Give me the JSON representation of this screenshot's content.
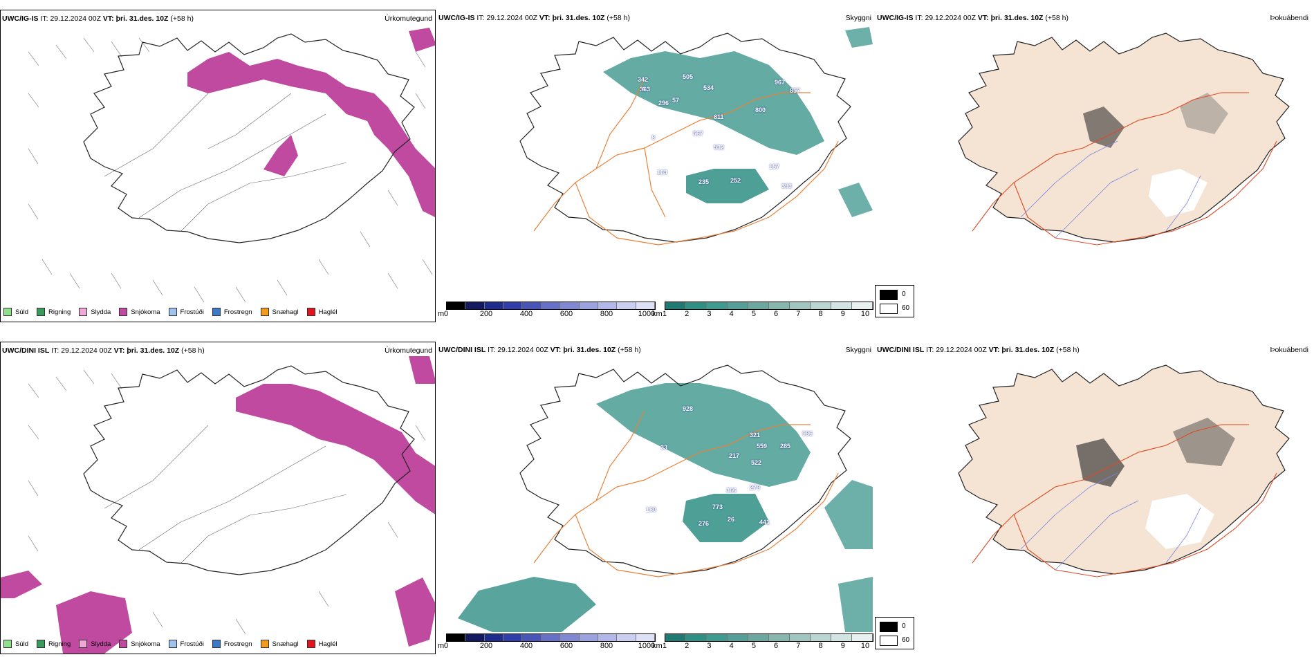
{
  "colors": {
    "coast": "#222222",
    "roads": "#e8823a",
    "rivers": "#7b86e0",
    "snow": "#bf4a9f",
    "cloud": "#2f8f84",
    "land_tint": "#f5e3d4"
  },
  "rows": [
    {
      "model": "UWC/IG-IS",
      "it_label": "IT:",
      "it_value": "29.12.2024 00Z",
      "vt_label": "VT:",
      "vt_value": "þri. 31.des. 10Z",
      "lead": "(+58 h)",
      "cloud_labels": [
        "342",
        "363",
        "505",
        "534",
        "967",
        "857",
        "296",
        "57",
        "811",
        "800",
        "567",
        "532",
        "163",
        "235",
        "252",
        "157",
        "393",
        "4",
        "8"
      ]
    },
    {
      "model": "UWC/DINI ISL",
      "it_label": "IT:",
      "it_value": "29.12.2024 00Z",
      "vt_label": "VT:",
      "vt_value": "þri. 31.des. 10Z",
      "lead": "(+58 h)",
      "cloud_labels": [
        "928",
        "321",
        "559",
        "285",
        "986",
        "217",
        "522",
        "366",
        "279",
        "773",
        "180",
        "276",
        "26",
        "441",
        "33"
      ]
    }
  ],
  "panels": {
    "precip_title": "Úrkomutegund",
    "cloud_title": "Skyggni",
    "fog_title": "Þokuábendi"
  },
  "precip_legend": [
    {
      "label": "Súld",
      "color": "#8fe08a"
    },
    {
      "label": "Rigning",
      "color": "#3a9a5b"
    },
    {
      "label": "Slydda",
      "color": "#f2a8d6"
    },
    {
      "label": "Snjókoma",
      "color": "#bf4a9f"
    },
    {
      "label": "Frostúði",
      "color": "#9cc4ee"
    },
    {
      "label": "Frostregn",
      "color": "#3d78c6"
    },
    {
      "label": "Snæhagl",
      "color": "#f29b1f"
    },
    {
      "label": "Haglél",
      "color": "#e0141e"
    }
  ],
  "ceiling_bar": {
    "unit": "m",
    "ticks": [
      "0",
      "200",
      "400",
      "600",
      "800",
      "1000"
    ],
    "colors": [
      "#000000",
      "#141a5e",
      "#1e2c8e",
      "#2f3ea8",
      "#4a55b8",
      "#6670c6",
      "#8088d2",
      "#9ba2de",
      "#b3b8e8",
      "#cacef0",
      "#dee0f6"
    ]
  },
  "vis_bar": {
    "unit": "km",
    "ticks": [
      "1",
      "2",
      "3",
      "4",
      "5",
      "6",
      "7",
      "8",
      "9",
      "10"
    ],
    "colors": [
      "#1f7a72",
      "#2f8f84",
      "#3f9a90",
      "#549f97",
      "#6ca8a0",
      "#86b6ae",
      "#a0c6c0",
      "#bad6d1",
      "#d2e5e2",
      "#e8f1f0"
    ]
  },
  "fog_legend": {
    "high": "0",
    "low": "60"
  }
}
